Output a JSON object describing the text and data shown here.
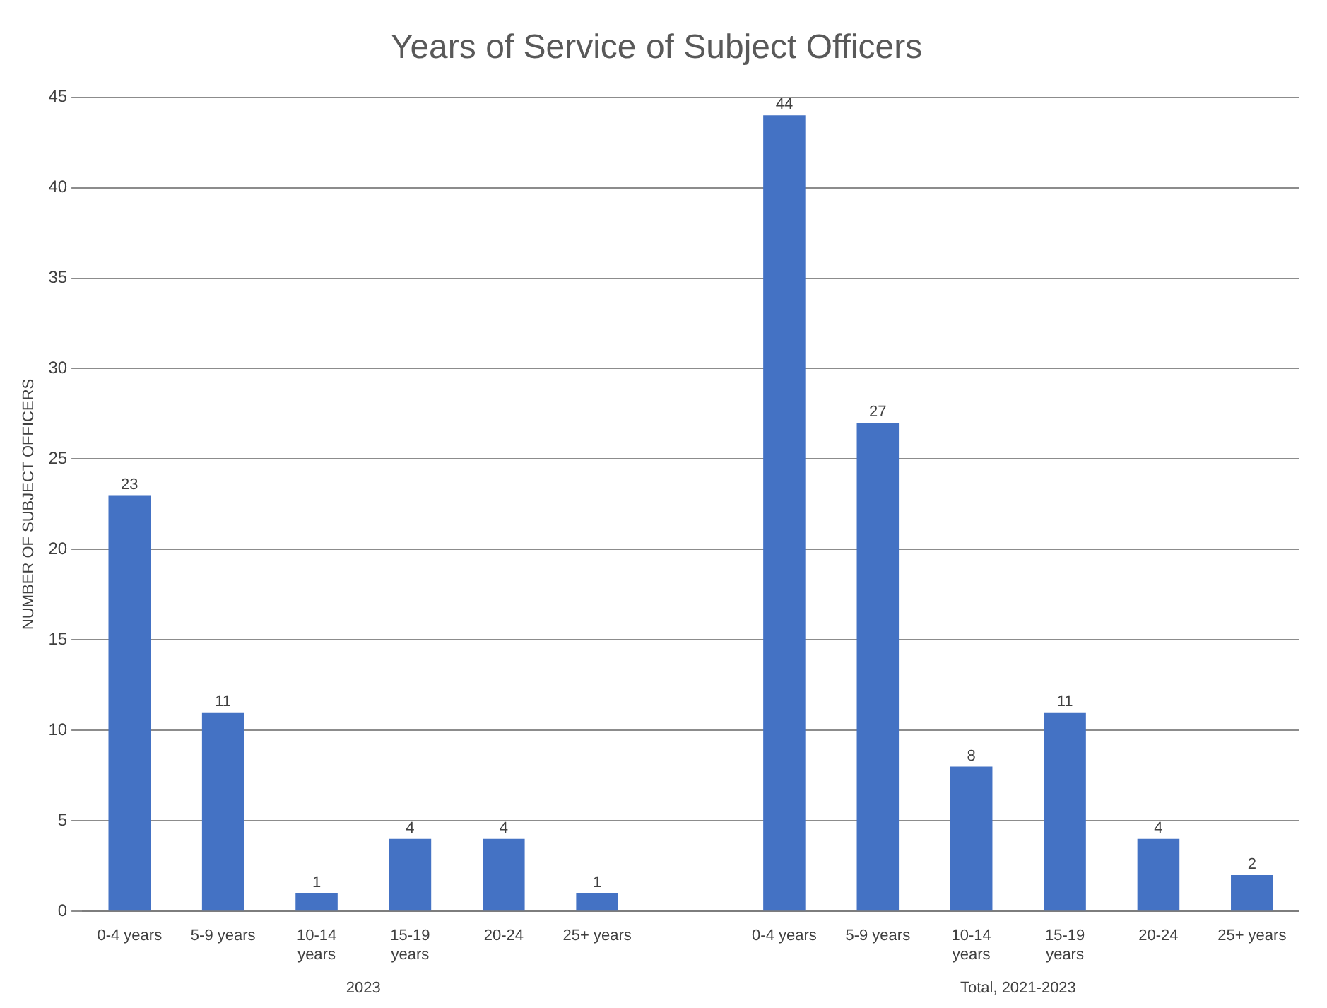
{
  "chart_data": {
    "type": "bar",
    "title": "Years of Service of Subject Officers",
    "ylabel": "NUMBER OF SUBJECT OFFICERS",
    "categories": [
      "0-4 years",
      "5-9 years",
      "10-14 years",
      "15-19 years",
      "20-24",
      "25+ years",
      null,
      "0-4 years",
      "5-9 years",
      "10-14 years",
      "15-19 years",
      "20-24",
      "25+ years"
    ],
    "values": [
      23,
      11,
      1,
      4,
      4,
      1,
      null,
      44,
      27,
      8,
      11,
      4,
      2
    ],
    "color": "#4472c4",
    "annotations": [
      "2023",
      "Total, 2021-2023"
    ],
    "ylim": [
      0,
      45
    ],
    "yticks": [
      0,
      5,
      10,
      15,
      20,
      25,
      30,
      35,
      40,
      45
    ],
    "grid": "y",
    "data_labels": true
  }
}
